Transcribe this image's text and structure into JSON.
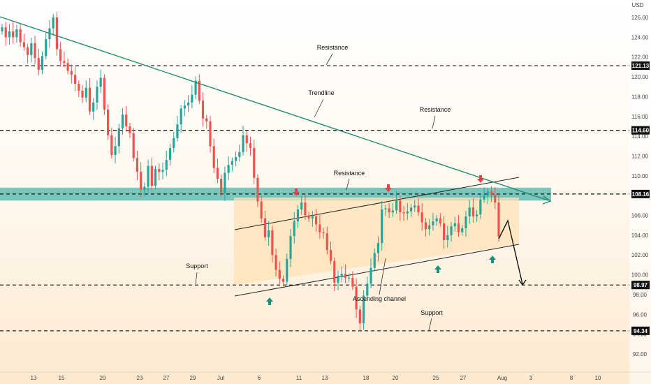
{
  "chart_data": {
    "type": "candlestick",
    "currency": "USD",
    "y_ticks": [
      "126.00",
      "124.00",
      "122.00",
      "120.00",
      "118.00",
      "116.00",
      "114.00",
      "112.00",
      "110.00",
      "108.00",
      "106.00",
      "104.00",
      "102.00",
      "100.00",
      "98.00",
      "96.00",
      "94.00",
      "92.00"
    ],
    "x_ticks": [
      "13",
      "15",
      "20",
      "23",
      "27",
      "29",
      "Jul",
      "6",
      "11",
      "13",
      "18",
      "20",
      "25",
      "27",
      "Aug",
      "3",
      "8",
      "10"
    ],
    "ylim": [
      90.5,
      127.5
    ],
    "levels": [
      {
        "value": 121.13,
        "label": "121.13",
        "name": "Resistance"
      },
      {
        "value": 114.6,
        "label": "114.60",
        "name": "Resistance"
      },
      {
        "value": 108.16,
        "label": "108.16",
        "name": "Resistance"
      },
      {
        "value": 98.97,
        "label": "98.97",
        "name": "Support"
      },
      {
        "value": 94.34,
        "label": "94.34",
        "name": "Support"
      }
    ],
    "zone": {
      "from": 107.5,
      "to": 108.8
    },
    "annotations": [
      "Resistance",
      "Trendline",
      "Resistance",
      "Resistance",
      "Support",
      "Ascending channel",
      "Support"
    ],
    "colors": {
      "up": "#26a69a",
      "down": "#ef5350",
      "zone": "#4db6ac",
      "trend": "#1e8e6e",
      "level": "#111111",
      "channel_fill": "#fde2b6"
    },
    "candles_close": [
      125,
      124,
      124.6,
      124,
      124.8,
      123.5,
      123,
      122.2,
      123.4,
      121.9,
      120.7,
      122.1,
      123.8,
      124.9,
      126,
      122.8,
      121.6,
      121.4,
      120.6,
      120.2,
      119.3,
      118.6,
      117.9,
      118.9,
      116.5,
      117.4,
      119,
      119.9,
      116.7,
      114.1,
      112.1,
      113,
      114.8,
      116.2,
      115,
      114.3,
      111.8,
      110.4,
      108.6,
      108.9,
      111,
      109,
      110.7,
      110.4,
      110.6,
      111.6,
      112.8,
      113.8,
      115.2,
      116.8,
      117.1,
      117.4,
      118.2,
      119.6,
      117.6,
      115.8,
      115.5,
      113,
      110.8,
      109.7,
      108.3,
      110.3,
      111.1,
      111.5,
      111.9,
      112.4,
      114.1,
      113.3,
      112.8,
      109.8,
      107.4,
      105.7,
      103.8,
      104.5,
      102,
      100.5,
      99.6,
      99.3,
      101.6,
      103.9,
      105.4,
      106.6,
      107.3,
      106,
      105.7,
      105.9,
      105.1,
      104.3,
      104.2,
      102.5,
      101.4,
      99.2,
      99.9,
      100.1,
      99.7,
      99.7,
      98.8,
      96.5,
      95.1,
      97.9,
      99.1,
      100.7,
      102.2,
      103.2,
      106.6,
      106.7,
      106.3,
      106.5,
      107.5,
      106.3,
      106.2,
      106.4,
      106.8,
      107,
      106.3,
      105.3,
      104.6,
      105,
      105.4,
      105.7,
      105.2,
      103.5,
      104,
      104.9,
      105.2,
      104.3,
      104.7,
      105.9,
      106.8,
      105.9,
      106.1,
      107.6,
      108,
      108.4,
      108.1,
      107.3,
      103.9
    ]
  },
  "markers": [
    {
      "type": "down",
      "color": "#e0434a",
      "icon": "arrow-down-icon"
    },
    {
      "type": "down",
      "color": "#e0434a",
      "icon": "arrow-down-icon"
    },
    {
      "type": "down",
      "color": "#e0434a",
      "icon": "arrow-down-icon"
    },
    {
      "type": "up",
      "color": "#1a8f7b",
      "icon": "arrow-up-icon"
    },
    {
      "type": "up",
      "color": "#1a8f7b",
      "icon": "arrow-up-icon"
    },
    {
      "type": "up",
      "color": "#1a8f7b",
      "icon": "arrow-up-icon"
    }
  ]
}
